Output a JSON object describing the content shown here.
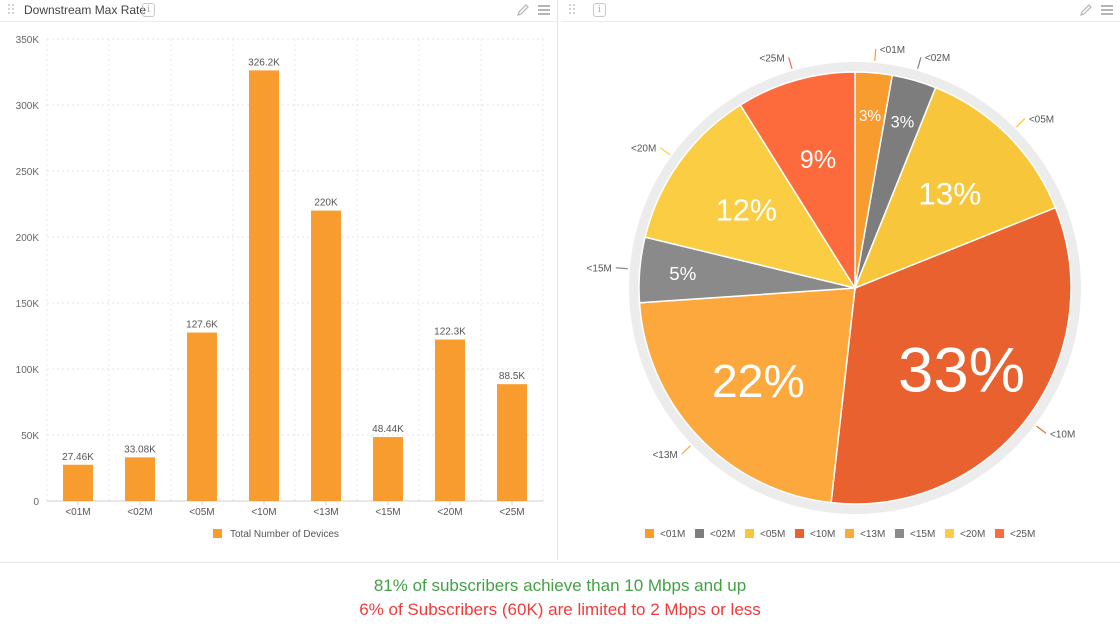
{
  "panels": {
    "left": {
      "title": "Downstream Max Rate",
      "info_glyph": "i"
    },
    "right": {
      "title": "",
      "info_glyph": "i"
    }
  },
  "chart_data": [
    {
      "type": "bar",
      "categories": [
        "<01M",
        "<02M",
        "<05M",
        "<10M",
        "<13M",
        "<15M",
        "<20M",
        "<25M"
      ],
      "series": [
        {
          "name": "Total Number of Devices",
          "values": [
            27460,
            33080,
            127600,
            326200,
            220000,
            48440,
            122300,
            88500
          ],
          "color": "#f99c2f"
        }
      ],
      "data_labels": [
        "27.46K",
        "33.08K",
        "127.6K",
        "326.2K",
        "220K",
        "48.44K",
        "122.3K",
        "88.5K"
      ],
      "ylim": [
        0,
        350000
      ],
      "yticks": [
        0,
        50000,
        100000,
        150000,
        200000,
        250000,
        300000,
        350000
      ],
      "ytick_labels": [
        "0",
        "50K",
        "100K",
        "150K",
        "200K",
        "250K",
        "300K",
        "350K"
      ],
      "grid": true,
      "legend": "bottom"
    },
    {
      "type": "pie",
      "labels": [
        "<01M",
        "<02M",
        "<05M",
        "<10M",
        "<13M",
        "<15M",
        "<20M",
        "<25M"
      ],
      "values": [
        27460,
        33080,
        127600,
        326200,
        220000,
        48440,
        122300,
        88500
      ],
      "percent_labels": [
        "3%",
        "3%",
        "13%",
        "33%",
        "22%",
        "5%",
        "12%",
        "9%"
      ],
      "colors": [
        "#f99c2f",
        "#7d7d7d",
        "#f8c63a",
        "#e8612f",
        "#fca83c",
        "#8a8a8a",
        "#fbcd43",
        "#fd6a3c"
      ],
      "legend": "bottom"
    }
  ],
  "footer": {
    "line1": "81% of subscribers achieve than 10 Mbps and up",
    "line2": "6% of Subscribers (60K) are limited to 2 Mbps or less",
    "line1_color": "#43a047",
    "line2_color": "#ef3b3b"
  }
}
